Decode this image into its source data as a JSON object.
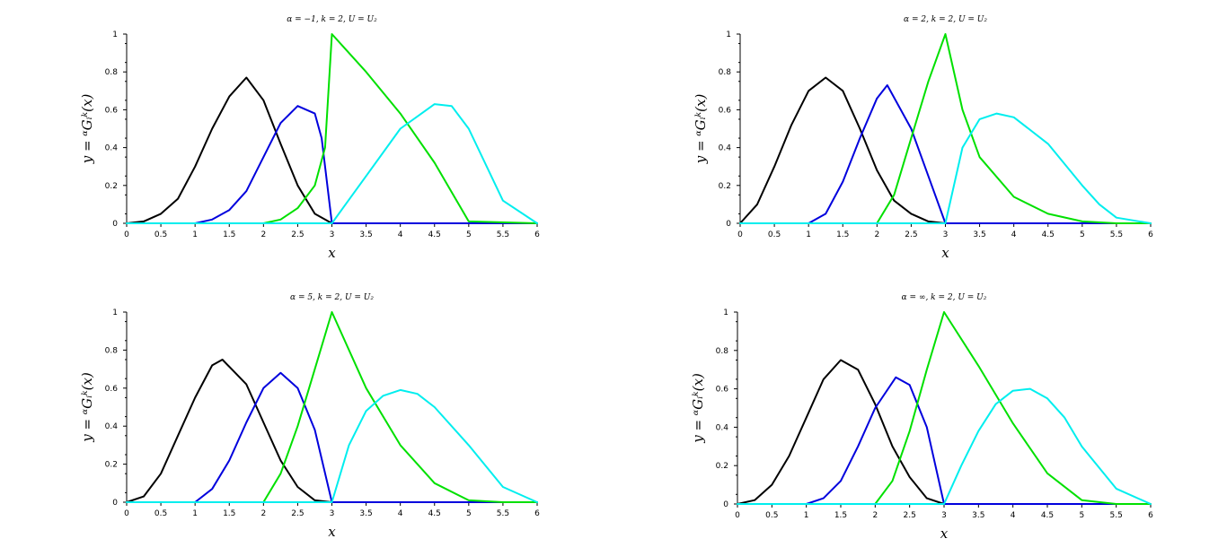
{
  "figure": {
    "background": "#ffffff"
  },
  "chart_data": [
    {
      "type": "line",
      "title": "α = −1, k = 2, U = U₂",
      "xlabel": "x",
      "ylabel": "y = ᵅGᵢᵏ(x)",
      "xlim": [
        0,
        6
      ],
      "ylim": [
        0,
        1
      ],
      "xticks": [
        "0",
        "0.5",
        "1",
        "1.5",
        "2",
        "2.5",
        "3",
        "3.5",
        "4",
        "4.5",
        "5",
        "5.5",
        "6"
      ],
      "yticks": [
        "0",
        "0.2",
        "0.4",
        "0.6",
        "0.8",
        "1"
      ],
      "grid": false,
      "series": [
        {
          "color": "#000000",
          "x": [
            0,
            0.25,
            0.5,
            0.75,
            1.0,
            1.25,
            1.5,
            1.75,
            2.0,
            2.25,
            2.5,
            2.75,
            3.0
          ],
          "y": [
            0,
            0.01,
            0.05,
            0.13,
            0.3,
            0.5,
            0.67,
            0.77,
            0.65,
            0.42,
            0.2,
            0.05,
            0
          ]
        },
        {
          "color": "#0000dd",
          "x": [
            0,
            1.0,
            1.25,
            1.5,
            1.75,
            2.0,
            2.25,
            2.5,
            2.75,
            2.85,
            3.0,
            6.0
          ],
          "y": [
            0,
            0,
            0.02,
            0.07,
            0.17,
            0.35,
            0.53,
            0.62,
            0.58,
            0.45,
            0,
            0
          ]
        },
        {
          "color": "#00e000",
          "x": [
            0,
            2.0,
            2.25,
            2.5,
            2.75,
            2.9,
            3.0,
            3.5,
            4.0,
            4.5,
            5.0,
            6.0
          ],
          "y": [
            0,
            0,
            0.02,
            0.08,
            0.2,
            0.4,
            1.0,
            0.8,
            0.58,
            0.32,
            0.01,
            0
          ]
        },
        {
          "color": "#00eeee",
          "x": [
            0,
            3.0,
            3.5,
            4.0,
            4.5,
            4.75,
            5.0,
            5.5,
            6.0
          ],
          "y": [
            0,
            0,
            0.25,
            0.5,
            0.63,
            0.62,
            0.5,
            0.12,
            0
          ]
        }
      ]
    },
    {
      "type": "line",
      "title": "α = 2, k = 2, U = U₂",
      "xlabel": "x",
      "ylabel": "y = ᵅGᵢᵏ(x)",
      "xlim": [
        0,
        6
      ],
      "ylim": [
        0,
        1
      ],
      "xticks": [
        "0",
        "0.5",
        "1",
        "1.5",
        "2",
        "2.5",
        "3",
        "3.5",
        "4",
        "4.5",
        "5",
        "5.5",
        "6"
      ],
      "yticks": [
        "0",
        "0.2",
        "0.4",
        "0.6",
        "0.8",
        "1"
      ],
      "grid": false,
      "series": [
        {
          "color": "#000000",
          "x": [
            0,
            0.25,
            0.5,
            0.75,
            1.0,
            1.25,
            1.5,
            1.75,
            2.0,
            2.25,
            2.5,
            2.75,
            3.0
          ],
          "y": [
            0,
            0.1,
            0.3,
            0.52,
            0.7,
            0.77,
            0.7,
            0.5,
            0.28,
            0.12,
            0.05,
            0.01,
            0
          ]
        },
        {
          "color": "#0000dd",
          "x": [
            0,
            1.0,
            1.25,
            1.5,
            1.75,
            2.0,
            2.15,
            2.5,
            2.75,
            3.0,
            6.0
          ],
          "y": [
            0,
            0,
            0.05,
            0.22,
            0.45,
            0.66,
            0.73,
            0.5,
            0.25,
            0,
            0
          ]
        },
        {
          "color": "#00e000",
          "x": [
            0,
            2.0,
            2.25,
            2.5,
            2.75,
            3.0,
            3.25,
            3.5,
            4.0,
            4.5,
            5.0,
            5.5,
            6.0
          ],
          "y": [
            0,
            0,
            0.15,
            0.45,
            0.75,
            1.0,
            0.6,
            0.35,
            0.14,
            0.05,
            0.01,
            0,
            0
          ]
        },
        {
          "color": "#00eeee",
          "x": [
            0,
            3.0,
            3.25,
            3.5,
            3.75,
            4.0,
            4.5,
            5.0,
            5.25,
            5.5,
            6.0
          ],
          "y": [
            0,
            0,
            0.4,
            0.55,
            0.58,
            0.56,
            0.42,
            0.2,
            0.1,
            0.03,
            0
          ]
        }
      ]
    },
    {
      "type": "line",
      "title": "α = 5, k = 2, U = U₂",
      "xlabel": "x",
      "ylabel": "y = ᵅGᵢᵏ(x)",
      "xlim": [
        0,
        6
      ],
      "ylim": [
        0,
        1
      ],
      "xticks": [
        "0",
        "0.5",
        "1",
        "1.5",
        "2",
        "2.5",
        "3",
        "3.5",
        "4",
        "4.5",
        "5",
        "5.5",
        "6"
      ],
      "yticks": [
        "0",
        "0.2",
        "0.4",
        "0.6",
        "0.8",
        "1"
      ],
      "grid": false,
      "series": [
        {
          "color": "#000000",
          "x": [
            0,
            0.25,
            0.5,
            0.75,
            1.0,
            1.25,
            1.4,
            1.75,
            2.0,
            2.25,
            2.5,
            2.75,
            3.0
          ],
          "y": [
            0,
            0.03,
            0.15,
            0.35,
            0.55,
            0.72,
            0.75,
            0.62,
            0.42,
            0.22,
            0.08,
            0.01,
            0
          ]
        },
        {
          "color": "#0000dd",
          "x": [
            0,
            1.0,
            1.25,
            1.5,
            1.75,
            2.0,
            2.25,
            2.5,
            2.75,
            3.0,
            6.0
          ],
          "y": [
            0,
            0,
            0.07,
            0.22,
            0.42,
            0.6,
            0.68,
            0.6,
            0.38,
            0,
            0
          ]
        },
        {
          "color": "#00e000",
          "x": [
            0,
            2.0,
            2.25,
            2.5,
            2.75,
            3.0,
            3.5,
            4.0,
            4.5,
            5.0,
            5.5,
            6.0
          ],
          "y": [
            0,
            0,
            0.15,
            0.4,
            0.7,
            1.0,
            0.6,
            0.3,
            0.1,
            0.01,
            0,
            0
          ]
        },
        {
          "color": "#00eeee",
          "x": [
            0,
            3.0,
            3.25,
            3.5,
            3.75,
            4.0,
            4.25,
            4.5,
            5.0,
            5.5,
            6.0
          ],
          "y": [
            0,
            0,
            0.3,
            0.48,
            0.56,
            0.59,
            0.57,
            0.5,
            0.3,
            0.08,
            0
          ]
        }
      ]
    },
    {
      "type": "line",
      "title": "α = ∞, k = 2, U = U₂",
      "xlabel": "x",
      "ylabel": "y = ᵅGᵢᵏ(x)",
      "xlim": [
        0,
        6
      ],
      "ylim": [
        0,
        1
      ],
      "xticks": [
        "0",
        "0.5",
        "1",
        "1.5",
        "2",
        "2.5",
        "3",
        "3.5",
        "4",
        "4.5",
        "5",
        "5.5",
        "6"
      ],
      "yticks": [
        "0",
        "0.2",
        "0.4",
        "0.6",
        "0.8",
        "1"
      ],
      "grid": false,
      "series": [
        {
          "color": "#000000",
          "x": [
            0,
            0.25,
            0.5,
            0.75,
            1.0,
            1.25,
            1.5,
            1.75,
            2.0,
            2.25,
            2.5,
            2.75,
            3.0
          ],
          "y": [
            0,
            0.02,
            0.1,
            0.25,
            0.45,
            0.65,
            0.75,
            0.7,
            0.52,
            0.3,
            0.14,
            0.03,
            0
          ]
        },
        {
          "color": "#0000dd",
          "x": [
            0,
            1.0,
            1.25,
            1.5,
            1.75,
            2.0,
            2.3,
            2.5,
            2.75,
            3.0,
            6.0
          ],
          "y": [
            0,
            0,
            0.03,
            0.12,
            0.3,
            0.5,
            0.66,
            0.62,
            0.4,
            0,
            0
          ]
        },
        {
          "color": "#00e000",
          "x": [
            0,
            2.0,
            2.25,
            2.5,
            2.75,
            3.0,
            3.5,
            4.0,
            4.5,
            5.0,
            5.5,
            6.0
          ],
          "y": [
            0,
            0,
            0.12,
            0.38,
            0.7,
            1.0,
            0.72,
            0.42,
            0.16,
            0.02,
            0,
            0
          ]
        },
        {
          "color": "#00eeee",
          "x": [
            0,
            3.0,
            3.25,
            3.5,
            3.75,
            4.0,
            4.25,
            4.5,
            4.75,
            5.0,
            5.5,
            6.0
          ],
          "y": [
            0,
            0,
            0.2,
            0.38,
            0.52,
            0.59,
            0.6,
            0.55,
            0.45,
            0.3,
            0.08,
            0
          ]
        }
      ]
    }
  ]
}
